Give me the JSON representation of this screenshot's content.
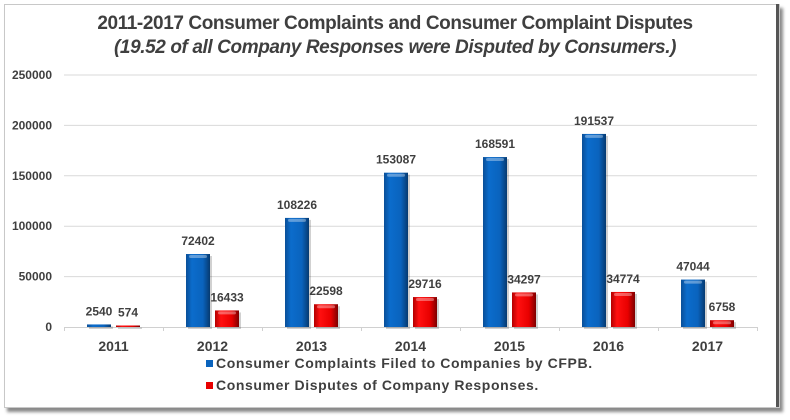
{
  "chart_data": {
    "type": "bar",
    "title": "2011-2017 Consumer Complaints and Consumer Complaint Disputes",
    "subtitle": "(19.52 of all Company Responses were Disputed by Consumers.)",
    "xlabel": "",
    "ylabel": "",
    "categories": [
      "2011",
      "2012",
      "2013",
      "2014",
      "2015",
      "2016",
      "2017"
    ],
    "series": [
      {
        "name": "Consumer Complaints Filed to Companies by CFPB.",
        "color": "#0a63bd",
        "values": [
          2540,
          72402,
          108226,
          153087,
          168591,
          191537,
          47044
        ]
      },
      {
        "name": "Consumer Disputes of Company Responses.",
        "color": "#e80000",
        "values": [
          574,
          16433,
          22598,
          29716,
          34297,
          34774,
          6758
        ]
      }
    ],
    "ylim": [
      0,
      250000
    ],
    "yticks": [
      "0",
      "50000",
      "100000",
      "150000",
      "200000",
      "250000"
    ],
    "ytick_values": [
      0,
      50000,
      100000,
      150000,
      200000,
      250000
    ],
    "grid": true,
    "data_labels": true,
    "legend_position": "bottom"
  }
}
